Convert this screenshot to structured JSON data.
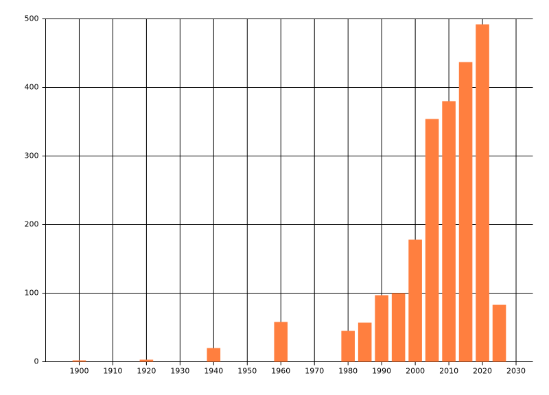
{
  "chart_data": {
    "type": "bar",
    "x": [
      1900,
      1920,
      1940,
      1960,
      1980,
      1985,
      1990,
      1995,
      2000,
      2005,
      2010,
      2015,
      2020,
      2025
    ],
    "values": [
      2,
      3,
      20,
      58,
      45,
      57,
      97,
      100,
      178,
      354,
      380,
      437,
      492,
      83
    ],
    "color": "#ff7f3f",
    "xlim": [
      1890,
      2035
    ],
    "xticks": [
      1900,
      1910,
      1920,
      1930,
      1940,
      1950,
      1960,
      1970,
      1980,
      1990,
      2000,
      2010,
      2020,
      2030
    ],
    "ylim": [
      0,
      500
    ],
    "yticks": [
      0,
      100,
      200,
      300,
      400,
      500
    ],
    "grid": true
  }
}
